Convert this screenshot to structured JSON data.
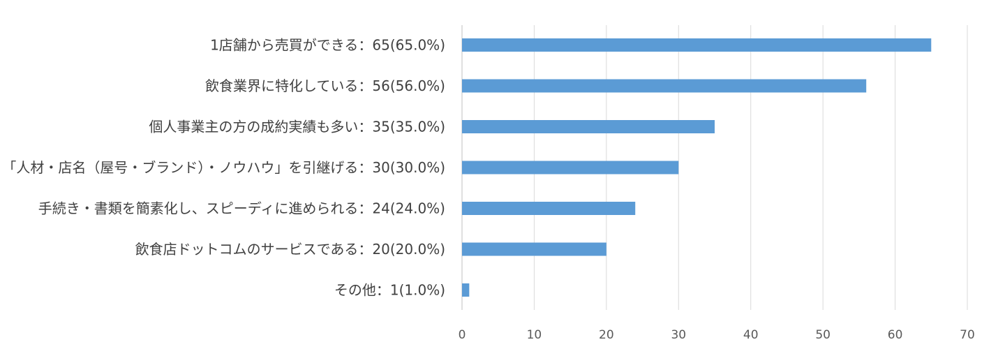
{
  "chart_data": {
    "type": "bar",
    "orientation": "horizontal",
    "categories": [
      "1店舗から売買ができる：65(65.0%)",
      "飲食業界に特化している：56(56.0%)",
      "個人事業主の方の成約実績も多い：35(35.0%)",
      "「人材・店名（屋号・ブランド）・ノウハウ」を引継げる：30(30.0%)",
      "手続き・書類を簡素化し、スピーディに進められる：24(24.0%)",
      "飲食店ドットコムのサービスである：20(20.0%)",
      "その他：1(1.0%)"
    ],
    "values": [
      65,
      56,
      35,
      30,
      24,
      20,
      1
    ],
    "xlim": [
      0,
      70
    ],
    "xticks": [
      0,
      10,
      20,
      30,
      40,
      50,
      60,
      70
    ],
    "grid": true,
    "legend": "none",
    "title": "",
    "xlabel": "",
    "ylabel": "",
    "colors": {
      "bar": "#5B9BD5",
      "grid": "#D9D9D9",
      "label": "#404040",
      "tick": "#595959"
    }
  }
}
